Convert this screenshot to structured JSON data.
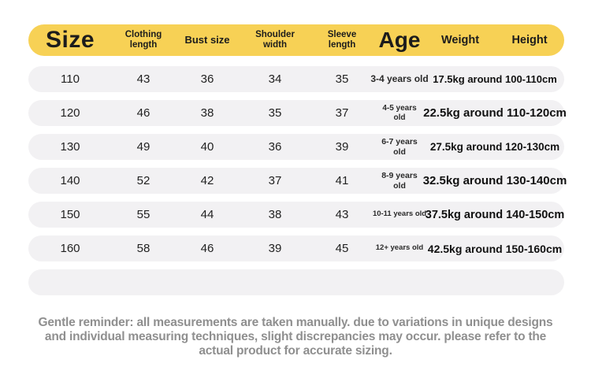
{
  "chart_data": {
    "type": "table",
    "title": "Children's clothing size chart",
    "columns": [
      "Size",
      "Clothing length",
      "Bust size",
      "Shoulder width",
      "Sleeve length",
      "Age",
      "Weight",
      "Height"
    ],
    "weight_height_merged_in_rows": true,
    "rows": [
      [
        "110",
        "43",
        "36",
        "34",
        "35",
        "3-4 years old",
        "17.5kg around 100-110cm"
      ],
      [
        "120",
        "46",
        "38",
        "35",
        "37",
        "4-5 years old",
        "22.5kg around 110-120cm"
      ],
      [
        "130",
        "49",
        "40",
        "36",
        "39",
        "6-7 years old",
        "27.5kg around 120-130cm"
      ],
      [
        "140",
        "52",
        "42",
        "37",
        "41",
        "8-9 years old",
        "32.5kg around 130-140cm"
      ],
      [
        "150",
        "55",
        "44",
        "38",
        "43",
        "10-11 years old",
        "37.5kg around 140-150cm"
      ],
      [
        "160",
        "58",
        "46",
        "39",
        "45",
        "12+ years old",
        "42.5kg around 150-160cm"
      ]
    ]
  },
  "note": "Gentle reminder: all measurements are taken manually. due to variations in unique designs and individual measuring techniques, slight discrepancies may occur. please refer to the actual product for accurate sizing.",
  "colors": {
    "header_bg": "#F7D155",
    "row_bg": "#F2F1F3",
    "header_text": "#1C1C1C",
    "note_text": "#8F8F8F"
  }
}
